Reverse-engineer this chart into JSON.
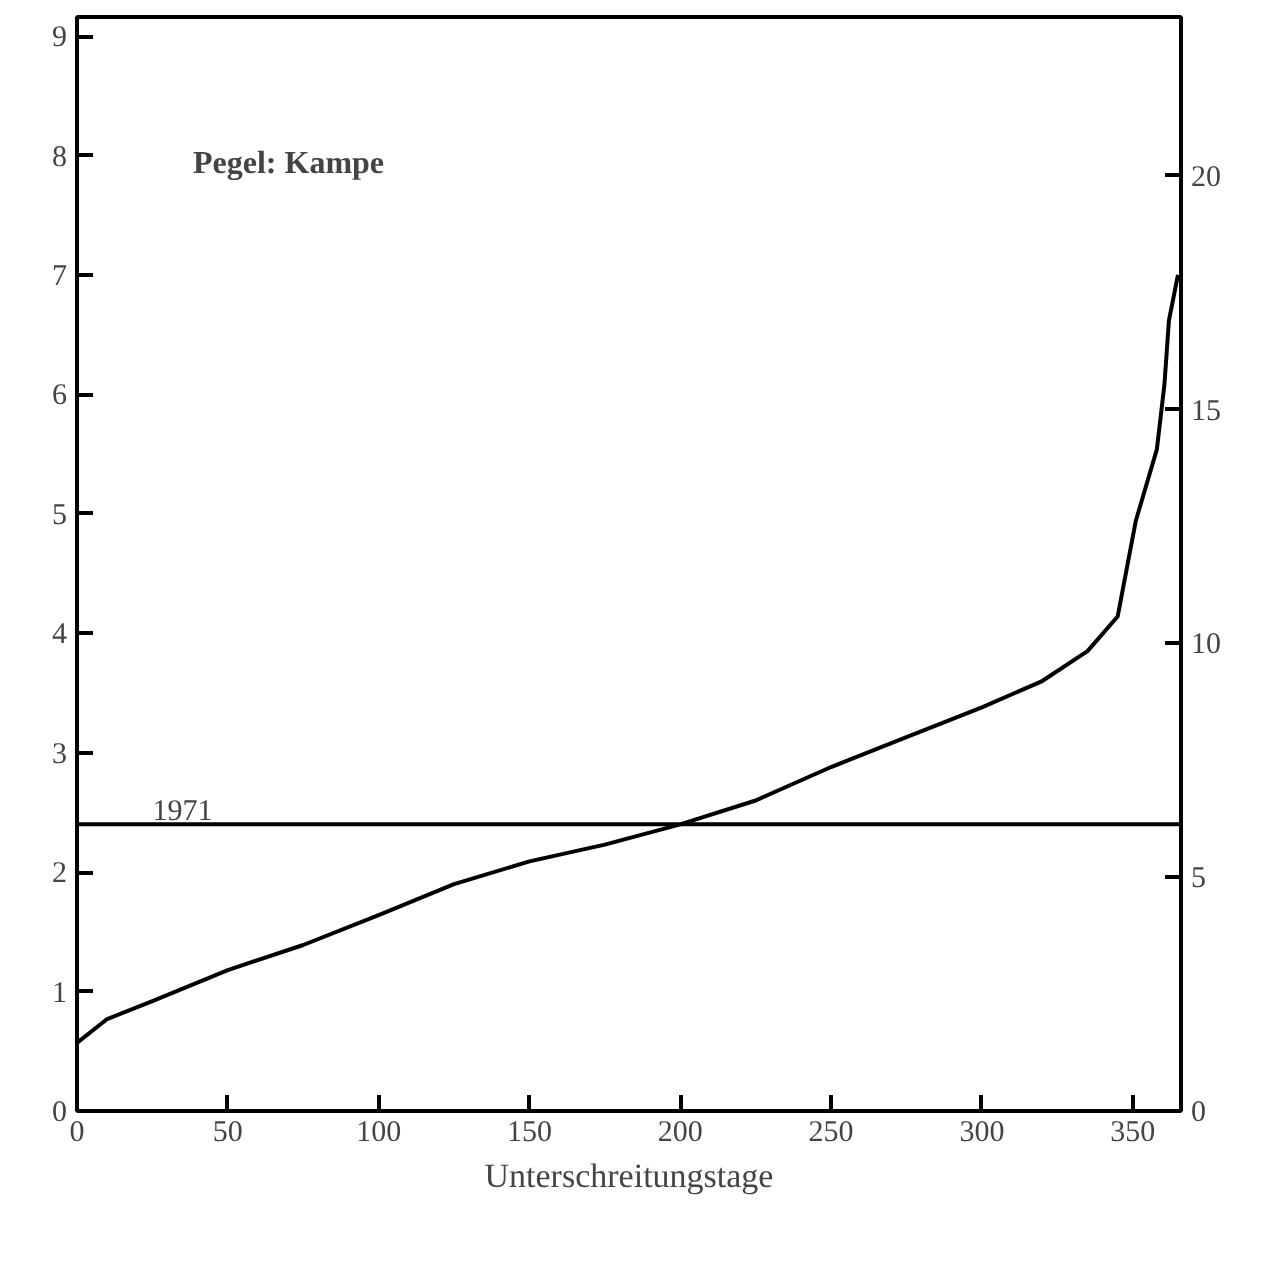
{
  "chart_data": {
    "type": "line",
    "xlabel": "Unterschreitungstage",
    "annotations": [
      "Pegel: Kampe",
      {
        "text": "1971",
        "x": 25,
        "y": 2.4
      }
    ],
    "x": [
      0,
      10,
      25,
      50,
      75,
      100,
      125,
      150,
      175,
      200,
      225,
      250,
      275,
      300,
      320,
      335,
      345,
      351,
      358,
      360.5,
      362,
      365
    ],
    "series": [
      {
        "color": "#000000",
        "values": [
          0.57,
          0.77,
          0.92,
          1.18,
          1.39,
          1.64,
          1.9,
          2.09,
          2.23,
          2.4,
          2.6,
          2.88,
          3.13,
          3.38,
          3.6,
          3.85,
          4.14,
          4.94,
          5.54,
          6.08,
          6.62,
          7.0
        ]
      }
    ],
    "xlim": [
      0,
      366
    ],
    "xticks": [
      0,
      50,
      100,
      150,
      200,
      250,
      300,
      350
    ],
    "ylim": [
      0,
      9.16
    ],
    "yticks": [
      0,
      1,
      2,
      3,
      4,
      5,
      6,
      7,
      8,
      9
    ],
    "y2lim": [
      0,
      23.4
    ],
    "y2ticks": [
      0,
      5,
      10,
      15,
      20
    ],
    "ref_lines": [
      {
        "axis": "y",
        "value": 2.4
      }
    ],
    "grid": false,
    "marker": "none",
    "line_style": "solid"
  }
}
